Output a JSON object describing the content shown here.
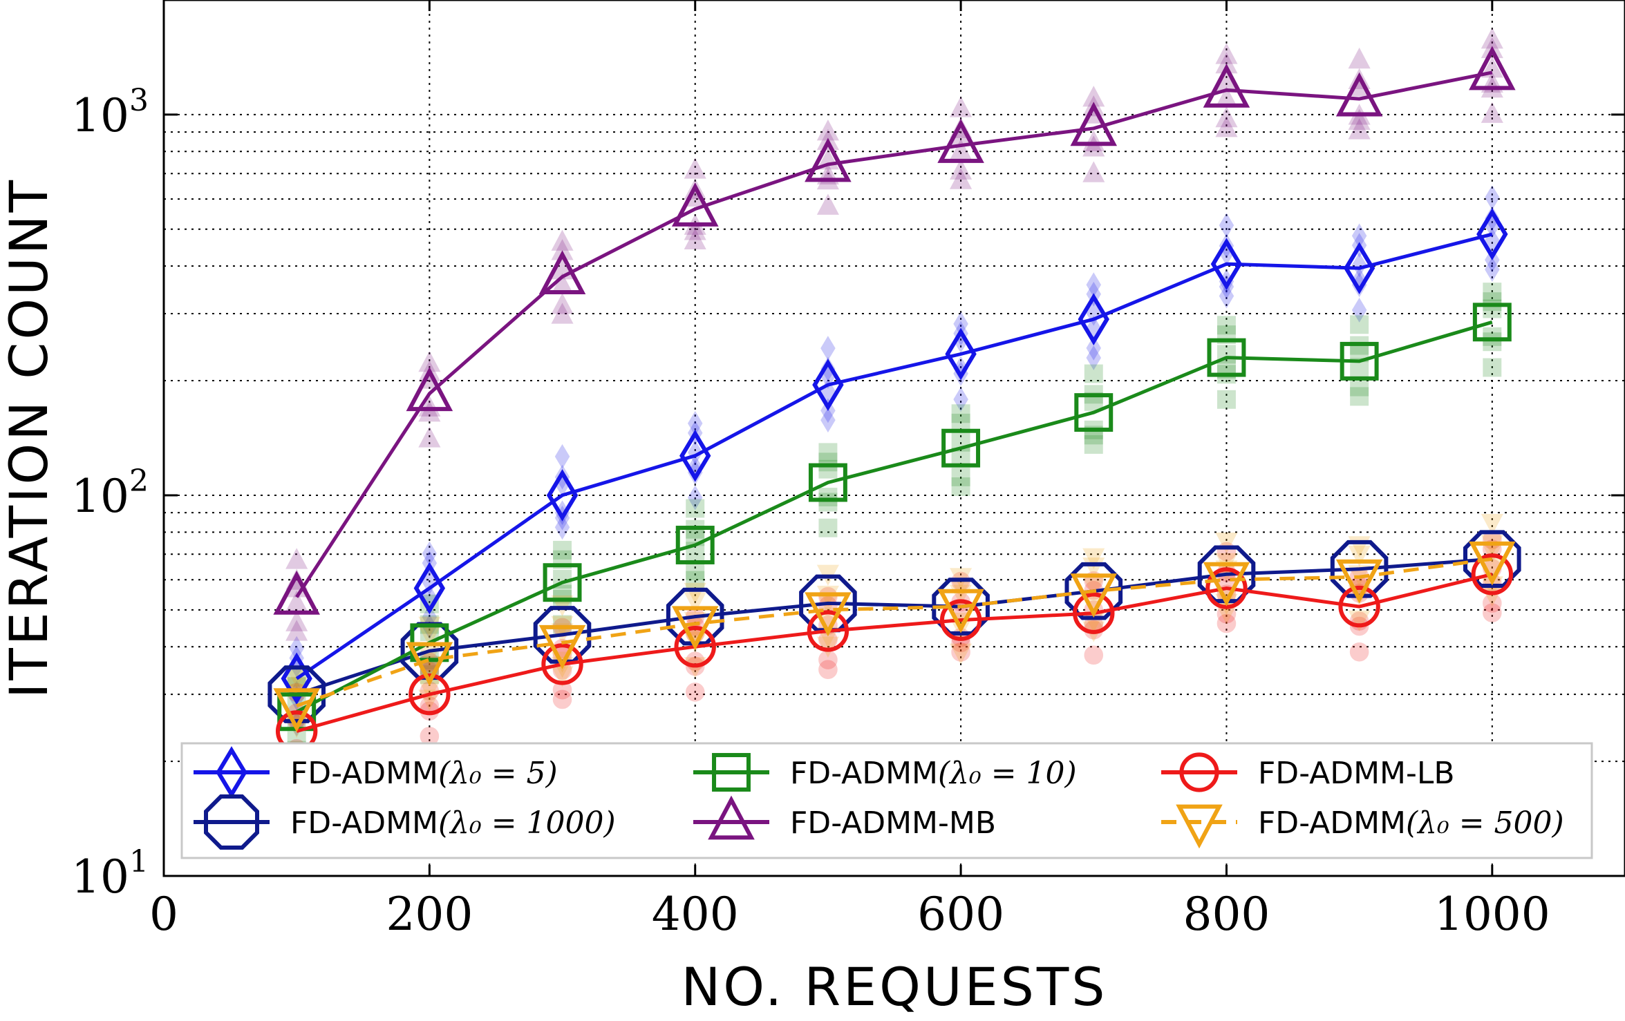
{
  "chart_data": {
    "type": "line",
    "title": "",
    "xlabel": "NO. REQUESTS",
    "ylabel": "ITERATION COUNT",
    "xscale": "linear",
    "yscale": "log",
    "xlim": [
      0,
      1100
    ],
    "ylim": [
      10,
      2000
    ],
    "x_ticks": [
      0,
      200,
      400,
      600,
      800,
      1000
    ],
    "x_tick_labels": [
      "0",
      "200",
      "400",
      "600",
      "800",
      "1000"
    ],
    "y_ticks": [
      10,
      100,
      1000
    ],
    "y_tick_labels": [
      {
        "base": "10",
        "exp": "1"
      },
      {
        "base": "10",
        "exp": "2"
      },
      {
        "base": "10",
        "exp": "3"
      }
    ],
    "grid": true,
    "legend_position": "bottom",
    "x": [
      100,
      200,
      300,
      400,
      500,
      600,
      700,
      800,
      900,
      1000
    ],
    "series": [
      {
        "name": "FD-ADMM(λ₀ = 5)",
        "legend_prefix": "FD-ADMM",
        "legend_math": "(λ₀ = 5)",
        "color": "#1515e8",
        "marker": "diamond",
        "values": [
          33,
          57,
          100,
          127,
          195,
          235,
          290,
          405,
          395,
          485
        ]
      },
      {
        "name": "FD-ADMM(λ₀ = 1000)",
        "legend_prefix": "FD-ADMM",
        "legend_math": "(λ₀ = 1000)",
        "color": "#0f1a8c",
        "marker": "octagon",
        "values": [
          30,
          39,
          43,
          48,
          52,
          51,
          56,
          62,
          64,
          68
        ]
      },
      {
        "name": "FD-ADMM(λ₀ = 10)",
        "legend_prefix": "FD-ADMM",
        "legend_math": "(λ₀ = 10)",
        "color": "#1a8a1a",
        "marker": "square",
        "values": [
          27,
          41,
          59,
          74,
          108,
          133,
          165,
          230,
          225,
          285
        ]
      },
      {
        "name": "FD-ADMM-MB",
        "legend_prefix": "FD-ADMM-MB",
        "legend_math": "",
        "color": "#7a1480",
        "marker": "triangle-up",
        "values": [
          54,
          185,
          375,
          565,
          740,
          830,
          920,
          1160,
          1100,
          1290
        ]
      },
      {
        "name": "FD-ADMM-LB",
        "legend_prefix": "FD-ADMM-LB",
        "legend_math": "",
        "color": "#ee1a1a",
        "marker": "circle",
        "values": [
          24,
          30,
          36,
          40,
          44,
          47,
          49,
          57,
          51,
          62
        ]
      },
      {
        "name": "FD-ADMM(λ₀ = 500)",
        "legend_prefix": "FD-ADMM",
        "legend_math": "(λ₀ = 500)",
        "color": "#f0a315",
        "marker": "triangle-down",
        "dashed": true,
        "values": [
          28,
          37,
          41,
          46,
          50,
          51,
          56,
          60,
          61,
          68
        ]
      }
    ]
  }
}
